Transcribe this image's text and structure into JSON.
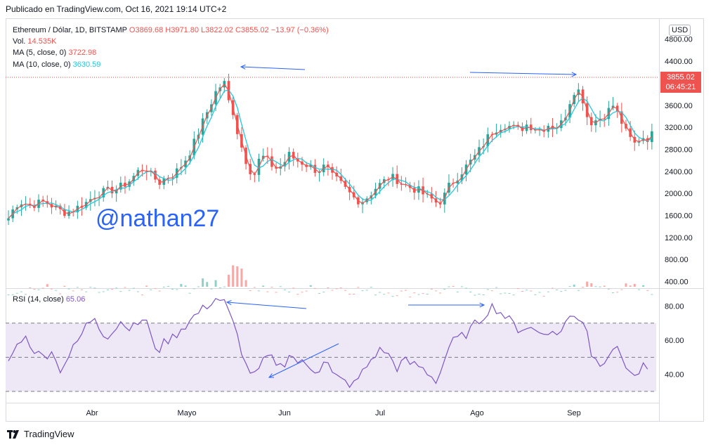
{
  "published": "Publicado en TradingView.com, Oct 16, 2021 19:14 UTC+2",
  "legend": {
    "symbol": "Ethereum / Dólar, 1D, BITSTAMP",
    "ohlc": "O3869.68 H3971.80 L3822.02 C3855.02 −13.97 (−0.36%)",
    "vol_label": "Vol.",
    "vol_value": "14.535K",
    "ma5_label": "MA (5, close, 0)",
    "ma5_value": "3722.98",
    "ma10_label": "MA (10, close, 0)",
    "ma10_value": "3630.59",
    "rsi_label": "RSI (14, close)",
    "rsi_value": "65.06"
  },
  "currency": "USD",
  "last_price": "3855.02",
  "countdown": "06:45:21",
  "watermark": "@nathan27",
  "brand": "TradingView",
  "colors": {
    "up": "#26a69a",
    "down": "#ef5350",
    "ma5": "#ef5350",
    "ma10": "#26c6da",
    "rsi": "#7e57c2",
    "arrow": "#2962ff",
    "rsi_band": "#ede7f6"
  },
  "chart_data": [
    {
      "type": "candlestick",
      "title": "Ethereum / Dólar, 1D, BITSTAMP",
      "x_labels": [
        "Abr",
        "Mayo",
        "Jun",
        "Jul",
        "Ago",
        "Sep"
      ],
      "price_ticks": [
        "4800.00",
        "4400.00",
        "4000.00",
        "3600.00",
        "3200.00",
        "2800.00",
        "2400.00",
        "2000.00",
        "1600.00",
        "1200.00",
        "800.00",
        "400.00"
      ],
      "ylim": [
        380,
        4860
      ],
      "close_path": [
        [
          0,
          1550
        ],
        [
          5,
          1800
        ],
        [
          10,
          1850
        ],
        [
          15,
          1780
        ],
        [
          20,
          1820
        ],
        [
          25,
          1850
        ],
        [
          30,
          1780
        ],
        [
          35,
          1700
        ],
        [
          40,
          1650
        ],
        [
          45,
          1700
        ],
        [
          50,
          1780
        ],
        [
          55,
          1850
        ],
        [
          60,
          1970
        ],
        [
          65,
          2020
        ],
        [
          70,
          2050
        ],
        [
          75,
          2080
        ],
        [
          80,
          2150
        ],
        [
          85,
          2250
        ],
        [
          90,
          2400
        ],
        [
          95,
          2480
        ],
        [
          100,
          2300
        ],
        [
          105,
          2200
        ],
        [
          110,
          2300
        ],
        [
          115,
          2350
        ],
        [
          120,
          2500
        ],
        [
          125,
          2700
        ],
        [
          130,
          2980
        ],
        [
          135,
          3300
        ],
        [
          140,
          3600
        ],
        [
          145,
          3900
        ],
        [
          150,
          4000
        ],
        [
          152,
          3700
        ],
        [
          155,
          3600
        ],
        [
          160,
          3000
        ],
        [
          165,
          2600
        ],
        [
          170,
          2300
        ],
        [
          172,
          2400
        ],
        [
          175,
          2700
        ],
        [
          180,
          2600
        ],
        [
          185,
          2450
        ],
        [
          190,
          2500
        ],
        [
          195,
          2700
        ],
        [
          200,
          2600
        ],
        [
          205,
          2550
        ],
        [
          210,
          2480
        ],
        [
          215,
          2400
        ],
        [
          220,
          2500
        ],
        [
          225,
          2300
        ],
        [
          230,
          2200
        ],
        [
          235,
          2050
        ],
        [
          240,
          1920
        ],
        [
          245,
          1850
        ],
        [
          250,
          1950
        ],
        [
          255,
          2100
        ],
        [
          260,
          2200
        ],
        [
          265,
          2300
        ],
        [
          270,
          2250
        ],
        [
          275,
          2150
        ],
        [
          280,
          2100
        ],
        [
          285,
          2050
        ],
        [
          290,
          1950
        ],
        [
          295,
          1880
        ],
        [
          298,
          1820
        ],
        [
          302,
          1900
        ],
        [
          305,
          2100
        ],
        [
          310,
          2250
        ],
        [
          315,
          2400
        ],
        [
          320,
          2550
        ],
        [
          325,
          2700
        ],
        [
          330,
          2900
        ],
        [
          335,
          3100
        ],
        [
          340,
          3200
        ],
        [
          345,
          3250
        ],
        [
          350,
          3200
        ],
        [
          355,
          3150
        ],
        [
          360,
          3250
        ],
        [
          365,
          3200
        ],
        [
          370,
          3150
        ],
        [
          375,
          3250
        ],
        [
          380,
          3200
        ],
        [
          385,
          3300
        ],
        [
          388,
          3500
        ],
        [
          392,
          3850
        ],
        [
          395,
          3900
        ],
        [
          398,
          3800
        ],
        [
          402,
          3400
        ],
        [
          405,
          3300
        ],
        [
          410,
          3350
        ],
        [
          415,
          3450
        ],
        [
          420,
          3600
        ],
        [
          425,
          3350
        ],
        [
          430,
          3050
        ],
        [
          435,
          2900
        ],
        [
          440,
          3050
        ],
        [
          442,
          3000
        ],
        [
          445,
          3000
        ],
        [
          448,
          3100
        ]
      ],
      "volume_shape": [
        [
          0,
          250
        ],
        [
          20,
          300
        ],
        [
          50,
          240
        ],
        [
          80,
          230
        ],
        [
          100,
          260
        ],
        [
          125,
          300
        ],
        [
          140,
          380
        ],
        [
          150,
          420
        ],
        [
          155,
          620
        ],
        [
          158,
          1300
        ],
        [
          162,
          500
        ],
        [
          170,
          350
        ],
        [
          185,
          260
        ],
        [
          200,
          240
        ],
        [
          225,
          320
        ],
        [
          250,
          250
        ],
        [
          280,
          200
        ],
        [
          300,
          260
        ],
        [
          325,
          240
        ],
        [
          350,
          230
        ],
        [
          375,
          200
        ],
        [
          395,
          360
        ],
        [
          405,
          330
        ],
        [
          425,
          300
        ],
        [
          440,
          280
        ],
        [
          450,
          250
        ]
      ],
      "annotations": [
        {
          "from": [
            434,
            99
          ],
          "to": [
            343,
            95
          ]
        },
        {
          "from": [
            669,
            103
          ],
          "to": [
            820,
            106
          ]
        }
      ]
    },
    {
      "type": "line",
      "title": "RSI (14, close)",
      "y_ticks": [
        "80.00",
        "60.00",
        "40.00"
      ],
      "ylim": [
        25,
        90
      ],
      "levels": [
        70,
        50,
        30
      ],
      "path": [
        [
          0,
          48
        ],
        [
          5,
          55
        ],
        [
          10,
          63
        ],
        [
          15,
          58
        ],
        [
          20,
          52
        ],
        [
          25,
          50
        ],
        [
          30,
          55
        ],
        [
          35,
          42
        ],
        [
          40,
          48
        ],
        [
          45,
          55
        ],
        [
          50,
          62
        ],
        [
          55,
          70
        ],
        [
          60,
          74
        ],
        [
          65,
          65
        ],
        [
          70,
          62
        ],
        [
          75,
          68
        ],
        [
          80,
          72
        ],
        [
          85,
          66
        ],
        [
          90,
          70
        ],
        [
          95,
          74
        ],
        [
          100,
          58
        ],
        [
          105,
          55
        ],
        [
          110,
          60
        ],
        [
          115,
          62
        ],
        [
          120,
          67
        ],
        [
          125,
          70
        ],
        [
          130,
          75
        ],
        [
          135,
          78
        ],
        [
          140,
          82
        ],
        [
          145,
          85
        ],
        [
          150,
          82
        ],
        [
          155,
          72
        ],
        [
          160,
          60
        ],
        [
          165,
          45
        ],
        [
          170,
          40
        ],
        [
          172,
          38
        ],
        [
          175,
          45
        ],
        [
          180,
          50
        ],
        [
          185,
          48
        ],
        [
          190,
          44
        ],
        [
          195,
          52
        ],
        [
          200,
          48
        ],
        [
          205,
          46
        ],
        [
          210,
          44
        ],
        [
          215,
          42
        ],
        [
          220,
          50
        ],
        [
          225,
          40
        ],
        [
          230,
          37
        ],
        [
          235,
          35
        ],
        [
          240,
          34
        ],
        [
          245,
          40
        ],
        [
          250,
          46
        ],
        [
          255,
          52
        ],
        [
          260,
          55
        ],
        [
          265,
          50
        ],
        [
          270,
          44
        ],
        [
          275,
          48
        ],
        [
          280,
          46
        ],
        [
          285,
          45
        ],
        [
          290,
          42
        ],
        [
          295,
          38
        ],
        [
          298,
          36
        ],
        [
          302,
          46
        ],
        [
          305,
          55
        ],
        [
          310,
          60
        ],
        [
          315,
          62
        ],
        [
          320,
          65
        ],
        [
          325,
          70
        ],
        [
          330,
          74
        ],
        [
          335,
          80
        ],
        [
          340,
          78
        ],
        [
          345,
          74
        ],
        [
          350,
          70
        ],
        [
          355,
          66
        ],
        [
          360,
          68
        ],
        [
          365,
          66
        ],
        [
          370,
          64
        ],
        [
          375,
          66
        ],
        [
          380,
          62
        ],
        [
          385,
          68
        ],
        [
          388,
          72
        ],
        [
          392,
          74
        ],
        [
          395,
          73
        ],
        [
          398,
          74
        ],
        [
          402,
          66
        ],
        [
          405,
          52
        ],
        [
          410,
          46
        ],
        [
          415,
          50
        ],
        [
          420,
          56
        ],
        [
          425,
          52
        ],
        [
          430,
          44
        ],
        [
          435,
          38
        ],
        [
          440,
          44
        ],
        [
          445,
          43
        ]
      ],
      "annotations": [
        {
          "from": [
            436,
            439
          ],
          "to": [
            323,
            430
          ]
        },
        {
          "from": [
            581,
            434
          ],
          "to": [
            689,
            434
          ]
        },
        {
          "from": [
            482,
            489
          ],
          "to": [
            383,
            537
          ]
        }
      ]
    }
  ]
}
